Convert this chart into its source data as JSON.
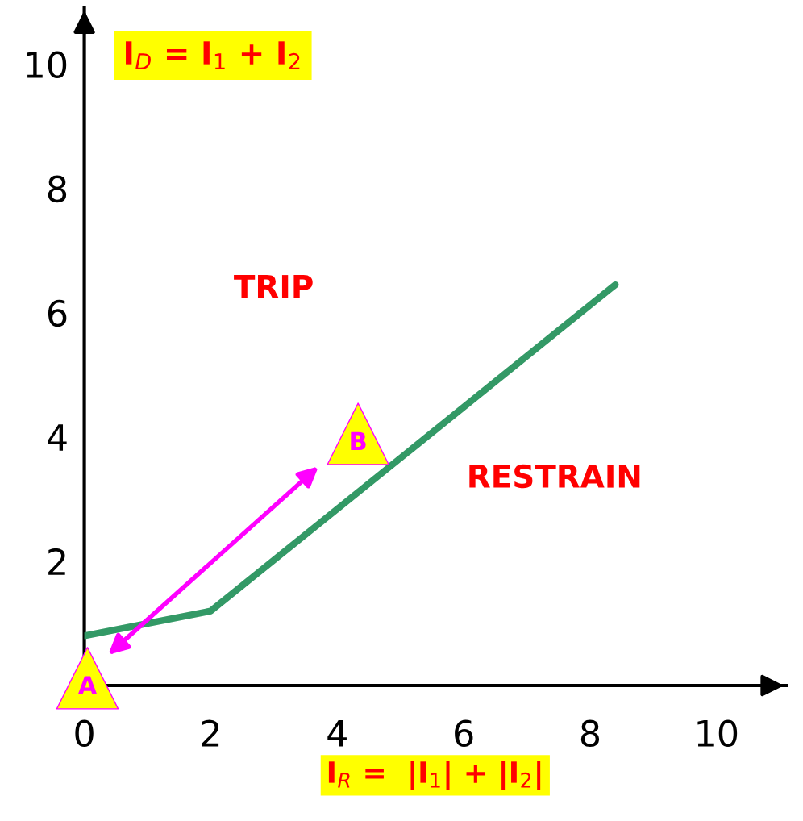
{
  "chart_data": {
    "type": "line",
    "ylabel": "I$_{D}$ = I$_{1}$ + I$_{2}$",
    "xlabel": "I$_{R}$ =  |I$_{1}$| + |I$_{2}$|",
    "x": [
      0,
      2,
      8.4
    ],
    "series": [
      {
        "color": "#339966",
        "values": [
          0.8,
          1.2,
          6.45
        ]
      },
      {
        "type": "scatter",
        "color": "#ffff00",
        "x": [
          0.05,
          4.33
        ],
        "values": [
          0.12,
          4.05
        ]
      }
    ],
    "annotations": [
      "TRIP",
      "RESTRAIN",
      {
        "text": "A",
        "x": 0.05,
        "y": 0.12
      },
      {
        "text": "B",
        "x": 4.33,
        "y": 4.05
      }
    ],
    "xlim": [
      0,
      11.1
    ],
    "ylim": [
      0,
      10.9
    ],
    "xticks": [
      0,
      2,
      4,
      6,
      8,
      10
    ],
    "yticks": [
      2,
      4,
      6,
      8,
      10
    ],
    "grid": false,
    "legend": false
  }
}
